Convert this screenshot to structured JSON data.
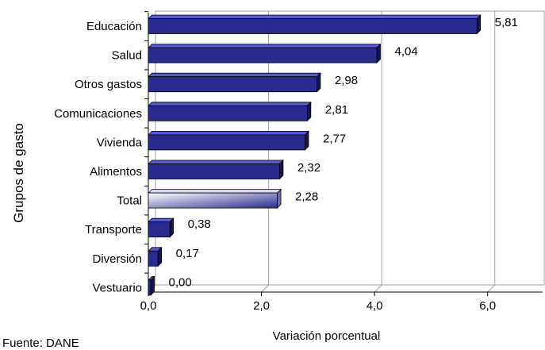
{
  "chart_data": {
    "type": "bar",
    "orientation": "horizontal",
    "categories": [
      "Educación",
      "Salud",
      "Otros gastos",
      "Comunicaciones",
      "Vivienda",
      "Alimentos",
      "Total",
      "Transporte",
      "Diversión",
      "Vestuario"
    ],
    "values": [
      5.81,
      4.04,
      2.98,
      2.81,
      2.77,
      2.32,
      2.28,
      0.38,
      0.17,
      0.0
    ],
    "value_labels": [
      "5,81",
      "4,04",
      "2,98",
      "2,81",
      "2,77",
      "2,32",
      "2,28",
      "0,38",
      "0,17",
      "0,00"
    ],
    "xlabel": "Variación porcentual",
    "ylabel": "Grupos de gasto",
    "xlim": [
      0,
      7
    ],
    "xticks": [
      0,
      2,
      4,
      6
    ],
    "xtick_labels": [
      "0,0",
      "2,0",
      "4,0",
      "6,0"
    ],
    "grid": true,
    "highlight_category": "Total",
    "colors": {
      "bar": "#2b2b8f",
      "bar_top": "#5a5ad0",
      "bar_side": "#14145a",
      "highlight_light": "#ffffff",
      "highlight_dark": "#2b2b8f",
      "grid": "#a0a0a0"
    }
  },
  "footnote": "Fuente: DANE"
}
